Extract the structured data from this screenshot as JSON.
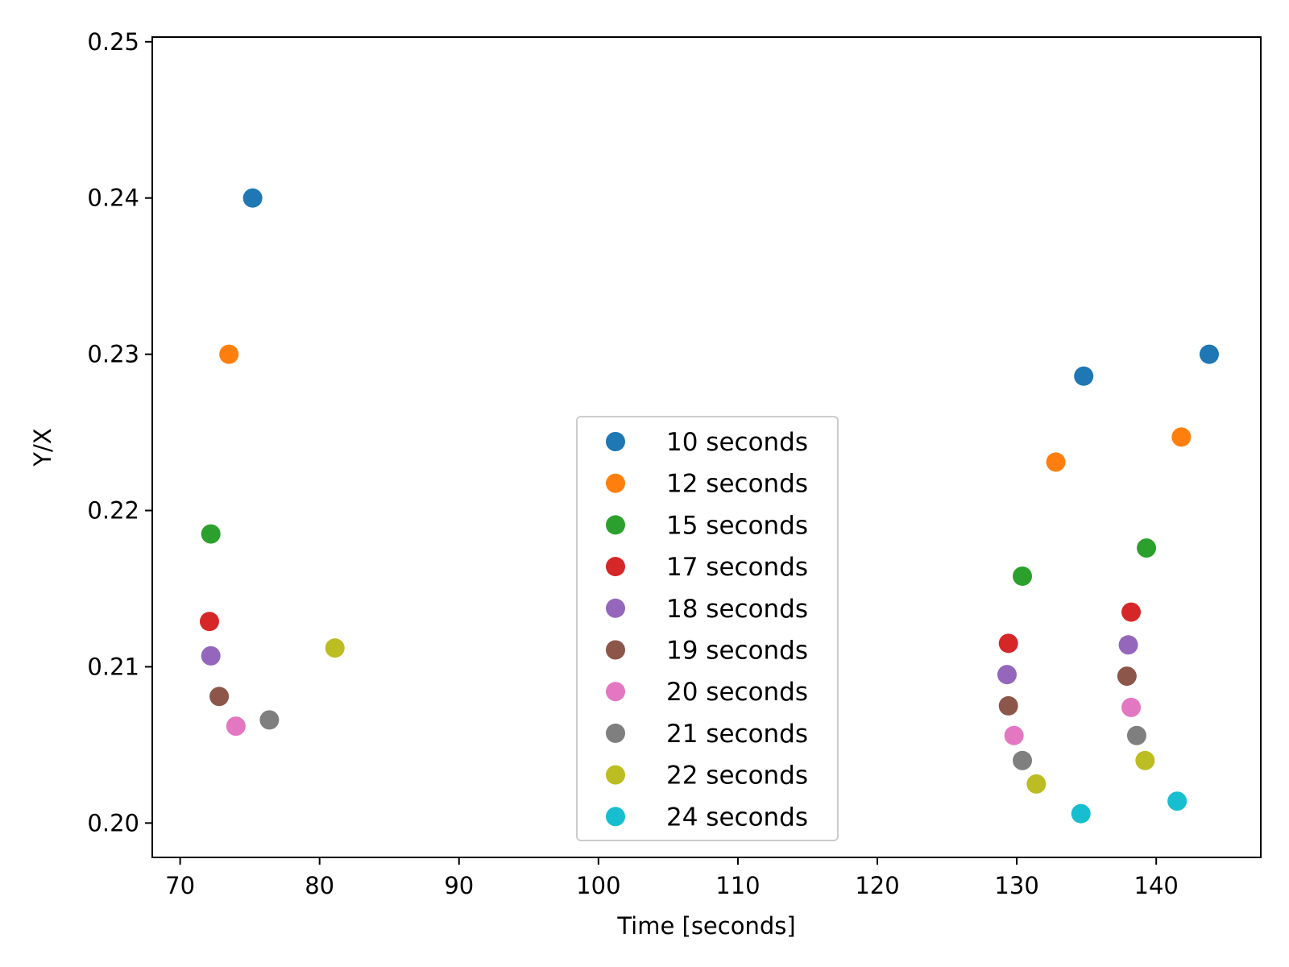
{
  "chart_data": {
    "type": "scatter",
    "title": "",
    "xlabel": "Time [seconds]",
    "ylabel": "Y/X",
    "xlim": [
      68,
      147.5
    ],
    "ylim": [
      0.1978,
      0.2503
    ],
    "xticks": [
      70,
      80,
      90,
      100,
      110,
      120,
      130,
      140
    ],
    "xtick_labels": [
      "70",
      "80",
      "90",
      "100",
      "110",
      "120",
      "130",
      "140"
    ],
    "yticks": [
      0.2,
      0.21,
      0.22,
      0.23,
      0.24,
      0.25
    ],
    "ytick_labels": [
      "0.20",
      "0.21",
      "0.22",
      "0.23",
      "0.24",
      "0.25"
    ],
    "grid": false,
    "legend_position": "lower-center",
    "series": [
      {
        "name": "10 seconds",
        "color": "#1f77b4",
        "points": [
          {
            "x": 75.2,
            "y": 0.24
          },
          {
            "x": 134.8,
            "y": 0.2286
          },
          {
            "x": 143.8,
            "y": 0.23
          }
        ]
      },
      {
        "name": "12 seconds",
        "color": "#ff7f0e",
        "points": [
          {
            "x": 73.5,
            "y": 0.23
          },
          {
            "x": 132.8,
            "y": 0.2231
          },
          {
            "x": 141.8,
            "y": 0.2247
          }
        ]
      },
      {
        "name": "15 seconds",
        "color": "#2ca02c",
        "points": [
          {
            "x": 72.2,
            "y": 0.2185
          },
          {
            "x": 130.4,
            "y": 0.2158
          },
          {
            "x": 139.3,
            "y": 0.2176
          }
        ]
      },
      {
        "name": "17 seconds",
        "color": "#d62728",
        "points": [
          {
            "x": 72.1,
            "y": 0.2129
          },
          {
            "x": 129.4,
            "y": 0.2115
          },
          {
            "x": 138.2,
            "y": 0.2135
          }
        ]
      },
      {
        "name": "18 seconds",
        "color": "#9467bd",
        "points": [
          {
            "x": 72.2,
            "y": 0.2107
          },
          {
            "x": 129.3,
            "y": 0.2095
          },
          {
            "x": 138.0,
            "y": 0.2114
          }
        ]
      },
      {
        "name": "19 seconds",
        "color": "#8c564b",
        "points": [
          {
            "x": 72.8,
            "y": 0.2081
          },
          {
            "x": 129.4,
            "y": 0.2075
          },
          {
            "x": 137.9,
            "y": 0.2094
          }
        ]
      },
      {
        "name": "20 seconds",
        "color": "#e377c2",
        "points": [
          {
            "x": 74.0,
            "y": 0.2062
          },
          {
            "x": 129.8,
            "y": 0.2056
          },
          {
            "x": 138.2,
            "y": 0.2074
          }
        ]
      },
      {
        "name": "21 seconds",
        "color": "#7f7f7f",
        "points": [
          {
            "x": 76.4,
            "y": 0.2066
          },
          {
            "x": 130.4,
            "y": 0.204
          },
          {
            "x": 138.6,
            "y": 0.2056
          }
        ]
      },
      {
        "name": "22 seconds",
        "color": "#bcbd22",
        "points": [
          {
            "x": 81.1,
            "y": 0.2112
          },
          {
            "x": 131.4,
            "y": 0.2025
          },
          {
            "x": 139.2,
            "y": 0.204
          }
        ]
      },
      {
        "name": "24 seconds",
        "color": "#17becf",
        "points": [
          {
            "x": 134.6,
            "y": 0.2006
          },
          {
            "x": 141.5,
            "y": 0.2014
          }
        ]
      }
    ]
  }
}
